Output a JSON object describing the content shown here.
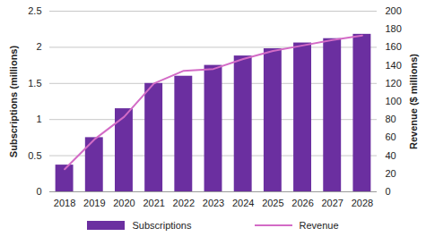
{
  "chart_data": {
    "type": "bar",
    "categories": [
      "2018",
      "2019",
      "2020",
      "2021",
      "2022",
      "2023",
      "2024",
      "2025",
      "2026",
      "2027",
      "2028"
    ],
    "series": [
      {
        "name": "Subscriptions",
        "type": "bar",
        "color": "#6b2fa0",
        "values": [
          0.37,
          0.75,
          1.15,
          1.5,
          1.6,
          1.75,
          1.88,
          1.98,
          2.06,
          2.12,
          2.18
        ]
      },
      {
        "name": "Revenue",
        "type": "line",
        "axis": "y2",
        "color": "#d36bc6",
        "values": [
          25,
          58,
          83,
          120,
          134,
          136,
          147,
          156,
          162,
          168,
          173
        ]
      }
    ],
    "y_label": "Subscriptions (millions)",
    "y2_label": "Revenue ($ millions)",
    "ylim": [
      0,
      2.5
    ],
    "yticks": [
      0,
      0.5,
      1,
      1.5,
      2,
      2.5
    ],
    "y2lim": [
      0,
      200
    ],
    "y2ticks": [
      0,
      20,
      40,
      60,
      80,
      100,
      120,
      140,
      160,
      180,
      200
    ],
    "grid": true,
    "legend": "bottom"
  }
}
